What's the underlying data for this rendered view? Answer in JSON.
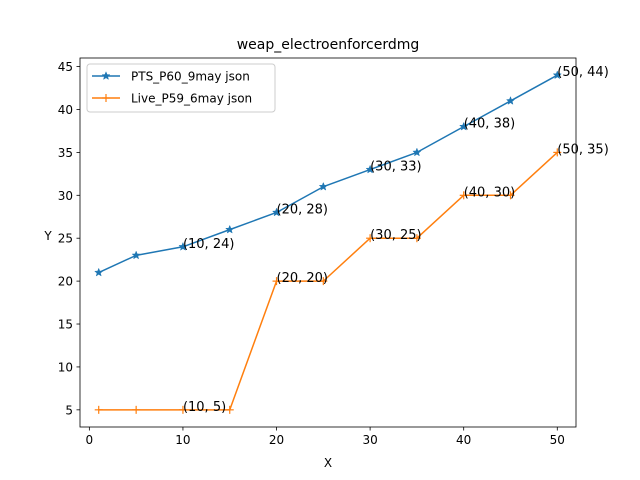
{
  "chart_data": {
    "type": "line",
    "title": "weap_electroenforcerdmg",
    "xlabel": "X",
    "ylabel": "Y",
    "xlim": [
      -1,
      52
    ],
    "ylim": [
      3,
      46
    ],
    "xticks": [
      0,
      10,
      20,
      30,
      40,
      50
    ],
    "yticks": [
      5,
      10,
      15,
      20,
      25,
      30,
      35,
      40,
      45
    ],
    "grid": false,
    "legend_position": "top-left",
    "series": [
      {
        "name": "PTS_P60_9may json",
        "color": "#1f77b4",
        "marker": "star",
        "x": [
          1,
          5,
          10,
          15,
          20,
          25,
          30,
          35,
          40,
          45,
          50
        ],
        "y": [
          21,
          23,
          24,
          26,
          28,
          31,
          33,
          35,
          38,
          41,
          44
        ]
      },
      {
        "name": "Live_P59_6may json",
        "color": "#ff7f0e",
        "marker": "plus",
        "x": [
          1,
          5,
          10,
          15,
          20,
          25,
          30,
          35,
          40,
          45,
          50
        ],
        "y": [
          5,
          5,
          5,
          5,
          20,
          20,
          25,
          25,
          30,
          30,
          35
        ]
      }
    ],
    "annotations": [
      {
        "x": 10,
        "y": 24,
        "text": "(10, 24)"
      },
      {
        "x": 20,
        "y": 28,
        "text": "(20, 28)"
      },
      {
        "x": 30,
        "y": 33,
        "text": "(30, 33)"
      },
      {
        "x": 40,
        "y": 38,
        "text": "(40, 38)"
      },
      {
        "x": 50,
        "y": 44,
        "text": "(50, 44)"
      },
      {
        "x": 10,
        "y": 5,
        "text": "(10, 5)"
      },
      {
        "x": 20,
        "y": 20,
        "text": "(20, 20)"
      },
      {
        "x": 30,
        "y": 25,
        "text": "(30, 25)"
      },
      {
        "x": 40,
        "y": 30,
        "text": "(40, 30)"
      },
      {
        "x": 50,
        "y": 35,
        "text": "(50, 35)"
      }
    ]
  }
}
